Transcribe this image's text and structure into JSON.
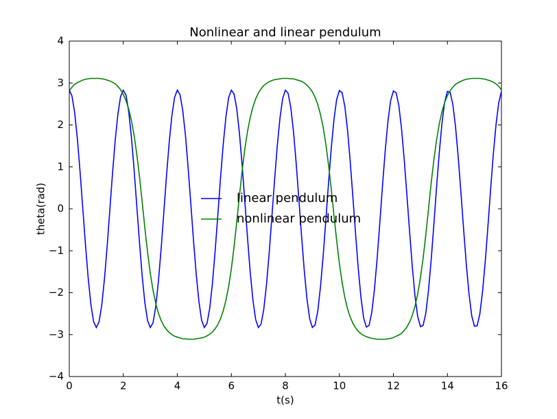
{
  "chart_data": {
    "type": "line",
    "title": "Nonlinear and linear pendulum",
    "x_label": "t(s)",
    "y_label": "theta(rad)",
    "xlim": [
      0,
      16
    ],
    "ylim": [
      -4,
      4
    ],
    "xticks": [
      0,
      2,
      4,
      6,
      8,
      10,
      12,
      14,
      16
    ],
    "yticks": [
      {
        "value": -4,
        "label": "−4"
      },
      {
        "value": -3,
        "label": "−3"
      },
      {
        "value": -2,
        "label": "−2"
      },
      {
        "value": -1,
        "label": "−1"
      },
      0,
      1,
      2,
      3,
      4
    ],
    "legend": "center",
    "x": [
      0,
      0.1,
      0.2,
      0.3,
      0.4,
      0.5,
      0.6,
      0.7,
      0.8,
      0.9,
      1,
      1.1,
      1.2,
      1.3,
      1.4,
      1.5,
      1.6,
      1.7,
      1.8,
      1.9,
      2,
      2.1,
      2.2,
      2.3,
      2.4,
      2.5,
      2.6,
      2.7,
      2.8,
      2.9,
      3,
      3.1,
      3.2,
      3.3,
      3.4,
      3.5,
      3.6,
      3.7,
      3.8,
      3.9,
      4,
      4.1,
      4.2,
      4.3,
      4.4,
      4.5,
      4.6,
      4.7,
      4.8,
      4.9,
      5,
      5.1,
      5.2,
      5.3,
      5.4,
      5.5,
      5.6,
      5.7,
      5.8,
      5.9,
      6,
      6.1,
      6.2,
      6.3,
      6.4,
      6.5,
      6.6,
      6.7,
      6.8,
      6.9,
      7,
      7.1,
      7.2,
      7.3,
      7.4,
      7.5,
      7.6,
      7.7,
      7.8,
      7.9,
      8,
      8.1,
      8.2,
      8.3,
      8.4,
      8.5,
      8.6,
      8.7,
      8.8,
      8.9,
      9,
      9.1,
      9.2,
      9.3,
      9.4,
      9.5,
      9.6,
      9.7,
      9.8,
      9.9,
      10,
      10.1,
      10.2,
      10.3,
      10.4,
      10.5,
      10.6,
      10.7,
      10.8,
      10.9,
      11,
      11.1,
      11.2,
      11.3,
      11.4,
      11.5,
      11.6,
      11.7,
      11.8,
      11.9,
      12,
      12.1,
      12.2,
      12.3,
      12.4,
      12.5,
      12.6,
      12.7,
      12.8,
      12.9,
      13,
      13.1,
      13.2,
      13.3,
      13.4,
      13.5,
      13.6,
      13.7,
      13.8,
      13.9,
      14,
      14.1,
      14.2,
      14.3,
      14.4,
      14.5,
      14.6,
      14.7,
      14.8,
      14.9,
      15,
      15.1,
      15.2,
      15.3,
      15.4,
      15.5,
      15.6,
      15.7,
      15.8,
      15.9,
      16
    ],
    "series": [
      {
        "name": "linear pendulum",
        "color": "#0000ff",
        "values": [
          2.83,
          2.69,
          2.29,
          1.67,
          0.88,
          0.01,
          -0.86,
          -1.65,
          -2.28,
          -2.69,
          -2.83,
          -2.7,
          -2.31,
          -1.69,
          -0.91,
          -0.04,
          0.84,
          1.63,
          2.26,
          2.68,
          2.83,
          2.71,
          2.32,
          1.71,
          0.93,
          0.06,
          -0.81,
          -1.61,
          -2.25,
          -2.67,
          -2.83,
          -2.72,
          -2.34,
          -1.73,
          -0.96,
          -0.09,
          0.79,
          1.59,
          2.23,
          2.66,
          2.83,
          2.72,
          2.35,
          1.76,
          0.98,
          0.12,
          -0.76,
          -1.56,
          -2.21,
          -2.66,
          -2.83,
          -2.73,
          -2.37,
          -1.78,
          -1.01,
          -0.15,
          0.74,
          1.54,
          2.2,
          2.65,
          2.83,
          2.74,
          2.39,
          1.8,
          1.04,
          0.17,
          -0.7,
          -1.52,
          -2.18,
          -2.64,
          -2.83,
          -2.75,
          -2.4,
          -1.82,
          -1.06,
          -0.2,
          0.68,
          1.5,
          2.16,
          2.63,
          2.83,
          2.76,
          2.42,
          1.85,
          1.09,
          0.23,
          -0.65,
          -1.47,
          -2.15,
          -2.62,
          -2.83,
          -2.77,
          -2.44,
          -1.86,
          -1.12,
          -0.26,
          0.63,
          1.45,
          2.13,
          2.61,
          2.82,
          2.77,
          2.45,
          1.89,
          1.14,
          0.28,
          -0.6,
          -1.43,
          -2.12,
          -2.61,
          -2.82,
          -2.78,
          -2.47,
          -1.91,
          -1.17,
          -0.31,
          0.58,
          1.41,
          2.1,
          2.59,
          2.81,
          2.77,
          2.47,
          1.92,
          1.18,
          0.33,
          -0.55,
          -1.38,
          -2.08,
          -2.57,
          -2.81,
          -2.78,
          -2.49,
          -1.94,
          -1.21,
          -0.36,
          0.53,
          1.35,
          2.05,
          2.55,
          2.8,
          2.78,
          2.49,
          1.96,
          1.23,
          0.39,
          -0.49,
          -1.33,
          -2.03,
          -2.55,
          -2.8,
          -2.79,
          -2.51,
          -1.98,
          -1.26,
          -0.42,
          0.47,
          1.31,
          2.01,
          2.53,
          2.8
        ]
      },
      {
        "name": "nonlinear pendulum",
        "color": "#008000",
        "values": [
          2.82,
          2.9,
          2.97,
          3.01,
          3.04,
          3.07,
          3.09,
          3.1,
          3.11,
          3.11,
          3.11,
          3.11,
          3.1,
          3.09,
          3.07,
          3.05,
          3.02,
          2.98,
          2.92,
          2.84,
          2.73,
          2.58,
          2.38,
          2.11,
          1.75,
          1.3,
          0.76,
          0.16,
          -0.47,
          -1.04,
          -1.54,
          -1.94,
          -2.25,
          -2.49,
          -2.66,
          -2.79,
          -2.88,
          -2.95,
          -3.0,
          -3.04,
          -3.06,
          -3.08,
          -3.1,
          -3.1,
          -3.11,
          -3.11,
          -3.11,
          -3.1,
          -3.09,
          -3.08,
          -3.06,
          -3.03,
          -2.99,
          -2.94,
          -2.86,
          -2.76,
          -2.62,
          -2.43,
          -2.18,
          -1.85,
          -1.43,
          -0.91,
          -0.31,
          0.31,
          0.91,
          1.43,
          1.85,
          2.18,
          2.43,
          2.62,
          2.76,
          2.86,
          2.94,
          2.99,
          3.03,
          3.06,
          3.08,
          3.09,
          3.1,
          3.11,
          3.11,
          3.11,
          3.1,
          3.1,
          3.08,
          3.06,
          3.04,
          3.0,
          2.95,
          2.88,
          2.79,
          2.66,
          2.49,
          2.25,
          1.94,
          1.54,
          1.04,
          0.47,
          -0.16,
          -0.76,
          -1.3,
          -1.75,
          -2.11,
          -2.38,
          -2.58,
          -2.73,
          -2.84,
          -2.92,
          -2.98,
          -3.02,
          -3.05,
          -3.07,
          -3.09,
          -3.1,
          -3.11,
          -3.11,
          -3.11,
          -3.11,
          -3.1,
          -3.09,
          -3.07,
          -3.04,
          -3.01,
          -2.97,
          -2.9,
          -2.82,
          -2.7,
          -2.54,
          -2.32,
          -2.03,
          -1.65,
          -1.18,
          -0.62,
          0,
          0.62,
          1.18,
          1.65,
          2.03,
          2.32,
          2.54,
          2.7,
          2.82,
          2.9,
          2.97,
          3.01,
          3.04,
          3.07,
          3.09,
          3.1,
          3.11,
          3.11,
          3.11,
          3.11,
          3.1,
          3.09,
          3.07,
          3.05,
          3.02,
          2.98,
          2.92,
          2.84
        ]
      }
    ]
  }
}
